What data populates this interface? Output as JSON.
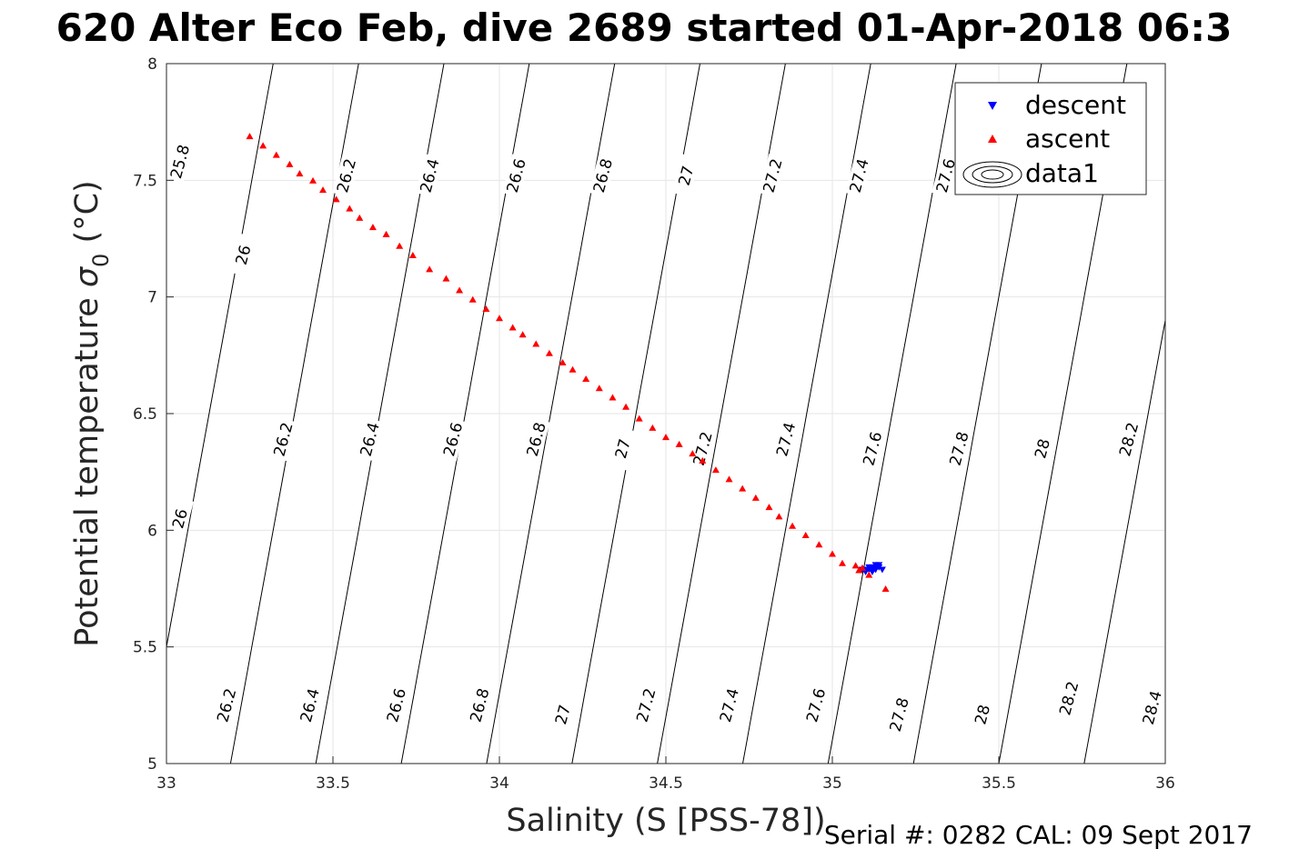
{
  "chart_data": {
    "type": "scatter",
    "title": "620 Alter Eco Feb, dive 2689 started 01-Apr-2018 06:3",
    "xlabel": "Salinity (S [PSS-78])",
    "ylabel_main": "Potential temperature ",
    "ylabel_sigma": "σ",
    "ylabel_sub": "0",
    "ylabel_unit": " (°C)",
    "xlim": [
      33,
      36
    ],
    "ylim": [
      5,
      8
    ],
    "xticks": [
      33,
      33.5,
      34,
      34.5,
      35,
      35.5,
      36
    ],
    "yticks": [
      5,
      5.5,
      6,
      6.5,
      7,
      7.5,
      8
    ],
    "grid": true,
    "legend_position": "top-right",
    "footer": "Serial #: 0282  CAL: 09 Sept 2017",
    "series": [
      {
        "name": "descent",
        "marker": "triangle-down",
        "color": "#0000ff",
        "points": [
          [
            35.09,
            5.83
          ],
          [
            35.1,
            5.82
          ],
          [
            35.11,
            5.83
          ],
          [
            35.12,
            5.84
          ],
          [
            35.13,
            5.83
          ],
          [
            35.14,
            5.84
          ],
          [
            35.15,
            5.83
          ],
          [
            35.13,
            5.85
          ],
          [
            35.11,
            5.84
          ],
          [
            35.1,
            5.83
          ],
          [
            35.12,
            5.82
          ],
          [
            35.14,
            5.85
          ]
        ]
      },
      {
        "name": "ascent",
        "marker": "triangle-up",
        "color": "#ff0000",
        "points": [
          [
            33.25,
            7.69
          ],
          [
            33.29,
            7.65
          ],
          [
            33.33,
            7.61
          ],
          [
            33.37,
            7.57
          ],
          [
            33.4,
            7.53
          ],
          [
            33.44,
            7.5
          ],
          [
            33.47,
            7.46
          ],
          [
            33.51,
            7.42
          ],
          [
            33.55,
            7.38
          ],
          [
            33.58,
            7.34
          ],
          [
            33.62,
            7.3
          ],
          [
            33.66,
            7.27
          ],
          [
            33.7,
            7.22
          ],
          [
            33.74,
            7.18
          ],
          [
            33.79,
            7.12
          ],
          [
            33.84,
            7.08
          ],
          [
            33.88,
            7.03
          ],
          [
            33.92,
            6.99
          ],
          [
            33.96,
            6.95
          ],
          [
            34.0,
            6.91
          ],
          [
            34.04,
            6.87
          ],
          [
            34.07,
            6.84
          ],
          [
            34.11,
            6.8
          ],
          [
            34.15,
            6.76
          ],
          [
            34.19,
            6.72
          ],
          [
            34.22,
            6.69
          ],
          [
            34.26,
            6.65
          ],
          [
            34.3,
            6.61
          ],
          [
            34.34,
            6.57
          ],
          [
            34.38,
            6.53
          ],
          [
            34.42,
            6.48
          ],
          [
            34.46,
            6.44
          ],
          [
            34.5,
            6.4
          ],
          [
            34.54,
            6.37
          ],
          [
            34.58,
            6.33
          ],
          [
            34.61,
            6.3
          ],
          [
            34.65,
            6.26
          ],
          [
            34.69,
            6.22
          ],
          [
            34.73,
            6.18
          ],
          [
            34.77,
            6.14
          ],
          [
            34.81,
            6.1
          ],
          [
            34.84,
            6.06
          ],
          [
            34.88,
            6.02
          ],
          [
            34.92,
            5.98
          ],
          [
            34.96,
            5.94
          ],
          [
            35.0,
            5.9
          ],
          [
            35.03,
            5.86
          ],
          [
            35.07,
            5.85
          ],
          [
            35.08,
            5.83
          ],
          [
            35.09,
            5.84
          ],
          [
            35.11,
            5.81
          ],
          [
            35.16,
            5.75
          ]
        ]
      }
    ],
    "contours": {
      "name": "data1",
      "levels": [
        25.8,
        26,
        26.2,
        26.4,
        26.6,
        26.8,
        27,
        27.2,
        27.4,
        27.6,
        27.8,
        28,
        28.2,
        28.4
      ],
      "labels": [
        {
          "text": "25.8",
          "x": 33.04,
          "y": 7.58,
          "rot": -75
        },
        {
          "text": "26",
          "x": 33.23,
          "y": 7.18,
          "rot": -75
        },
        {
          "text": "26.2",
          "x": 33.54,
          "y": 7.52,
          "rot": -75
        },
        {
          "text": "26.4",
          "x": 33.79,
          "y": 7.52,
          "rot": -75
        },
        {
          "text": "26.6",
          "x": 34.05,
          "y": 7.52,
          "rot": -75
        },
        {
          "text": "26.8",
          "x": 34.31,
          "y": 7.52,
          "rot": -75
        },
        {
          "text": "27",
          "x": 34.56,
          "y": 7.52,
          "rot": -75
        },
        {
          "text": "27.2",
          "x": 34.82,
          "y": 7.52,
          "rot": -75
        },
        {
          "text": "27.4",
          "x": 35.08,
          "y": 7.52,
          "rot": -75
        },
        {
          "text": "27.6",
          "x": 35.34,
          "y": 7.52,
          "rot": -75
        },
        {
          "text": "26",
          "x": 33.04,
          "y": 6.05,
          "rot": -75
        },
        {
          "text": "26.2",
          "x": 33.35,
          "y": 6.39,
          "rot": -75
        },
        {
          "text": "26.4",
          "x": 33.61,
          "y": 6.39,
          "rot": -75
        },
        {
          "text": "26.6",
          "x": 33.86,
          "y": 6.39,
          "rot": -75
        },
        {
          "text": "26.8",
          "x": 34.11,
          "y": 6.39,
          "rot": -75
        },
        {
          "text": "27",
          "x": 34.37,
          "y": 6.35,
          "rot": -75
        },
        {
          "text": "27.2",
          "x": 34.61,
          "y": 6.35,
          "rot": -75
        },
        {
          "text": "27.4",
          "x": 34.86,
          "y": 6.39,
          "rot": -75
        },
        {
          "text": "27.6",
          "x": 35.12,
          "y": 6.35,
          "rot": -75
        },
        {
          "text": "27.8",
          "x": 35.38,
          "y": 6.35,
          "rot": -75
        },
        {
          "text": "28",
          "x": 35.63,
          "y": 6.35,
          "rot": -75
        },
        {
          "text": "28.2",
          "x": 35.89,
          "y": 6.39,
          "rot": -75
        },
        {
          "text": "26.2",
          "x": 33.18,
          "y": 5.25,
          "rot": -75
        },
        {
          "text": "26.4",
          "x": 33.43,
          "y": 5.25,
          "rot": -75
        },
        {
          "text": "26.6",
          "x": 33.69,
          "y": 5.25,
          "rot": -75
        },
        {
          "text": "26.8",
          "x": 33.94,
          "y": 5.25,
          "rot": -75
        },
        {
          "text": "27",
          "x": 34.19,
          "y": 5.21,
          "rot": -75
        },
        {
          "text": "27.2",
          "x": 34.44,
          "y": 5.25,
          "rot": -75
        },
        {
          "text": "27.4",
          "x": 34.69,
          "y": 5.25,
          "rot": -75
        },
        {
          "text": "27.6",
          "x": 34.95,
          "y": 5.25,
          "rot": -75
        },
        {
          "text": "27.8",
          "x": 35.2,
          "y": 5.21,
          "rot": -75
        },
        {
          "text": "28",
          "x": 35.45,
          "y": 5.21,
          "rot": -75
        },
        {
          "text": "28.2",
          "x": 35.71,
          "y": 5.28,
          "rot": -75
        },
        {
          "text": "28.4",
          "x": 35.96,
          "y": 5.24,
          "rot": -75
        }
      ]
    }
  }
}
